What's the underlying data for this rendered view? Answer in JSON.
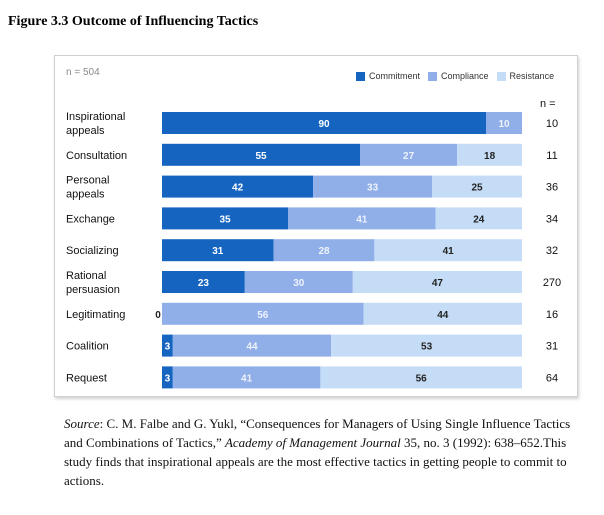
{
  "figure": {
    "title": "Figure 3.3 Outcome of Influencing Tactics",
    "sample_size": "n = 504",
    "n_column_header": "n ="
  },
  "colors": {
    "commitment": "#1565c0",
    "compliance": "#90aee8",
    "resistance": "#c5dcf6"
  },
  "chart_data": {
    "type": "bar",
    "orientation": "horizontal",
    "stacked": true,
    "title": "Figure 3.3 Outcome of Influencing Tactics",
    "xlabel": "",
    "ylabel": "",
    "xlim": [
      0,
      100
    ],
    "grid": false,
    "legend_position": "top-right",
    "categories": [
      "Inspirational appeals",
      "Consultation",
      "Personal appeals",
      "Exchange",
      "Socializing",
      "Rational persuasion",
      "Legitimating",
      "Coalition",
      "Request"
    ],
    "series": [
      {
        "name": "Commitment",
        "values": [
          90,
          55,
          42,
          35,
          31,
          23,
          0,
          3,
          3
        ]
      },
      {
        "name": "Compliance",
        "values": [
          10,
          27,
          33,
          41,
          28,
          30,
          56,
          44,
          41
        ]
      },
      {
        "name": "Resistance",
        "values": [
          0,
          18,
          25,
          24,
          41,
          47,
          44,
          53,
          56
        ]
      }
    ],
    "n": [
      10,
      11,
      36,
      34,
      32,
      270,
      16,
      31,
      64
    ]
  },
  "source": {
    "label": "Source",
    "text_a": ": C. M. Falbe and G. Yukl, “Consequences for Managers of Using Single Influence Tactics and Combinations of Tactics,” ",
    "journal": "Academy of Management Journal",
    "text_b": " 35, no. 3 (1992): 638–652.This study finds that inspirational appeals are the most effective tactics in getting people to commit to actions."
  }
}
